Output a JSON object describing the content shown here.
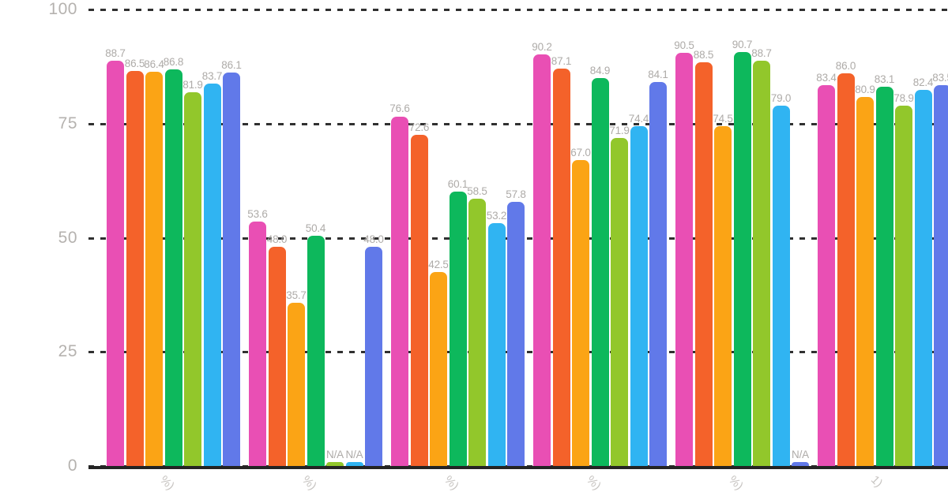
{
  "chart_data": {
    "type": "bar",
    "ylim": [
      0,
      100
    ],
    "y_ticks": [
      "0",
      "25",
      "50",
      "75",
      "100"
    ],
    "grid": "dashed horizontal gridlines at each y tick",
    "legend": "none",
    "x_axis_note": "rotated category labels cut off at bottom edge; only trailing fragments visible",
    "categories": [
      "%)",
      "%)",
      "%)",
      "%)",
      "%)",
      "1)"
    ],
    "na_label": "N/A",
    "value_decimals": 1,
    "series": [
      {
        "name": "pink",
        "color": "#e94fb4",
        "values": [
          88.7,
          53.6,
          76.6,
          90.2,
          90.5,
          83.4
        ]
      },
      {
        "name": "vermilion",
        "color": "#f4622a",
        "values": [
          86.5,
          48.0,
          72.6,
          87.1,
          88.5,
          86.0
        ]
      },
      {
        "name": "amber",
        "color": "#fba415",
        "values": [
          86.4,
          35.7,
          42.5,
          67.0,
          74.5,
          80.9
        ]
      },
      {
        "name": "green",
        "color": "#0db85c",
        "values": [
          86.8,
          50.4,
          60.1,
          84.9,
          90.7,
          83.1
        ]
      },
      {
        "name": "lime",
        "color": "#92c72b",
        "values": [
          81.9,
          null,
          58.5,
          71.9,
          88.7,
          78.9
        ]
      },
      {
        "name": "sky",
        "color": "#30b4f2",
        "values": [
          83.7,
          null,
          53.2,
          74.4,
          79.0,
          82.4
        ]
      },
      {
        "name": "blue",
        "color": "#6179e9",
        "values": [
          86.1,
          48.0,
          57.8,
          84.1,
          null,
          83.5
        ]
      }
    ]
  },
  "colors": {
    "background": "#ffffff",
    "grid": "#303030",
    "axis": "#242424",
    "tick_label": "#b5b2af",
    "value_label": "#aeaba8",
    "x_tick_label": "#c7c4c1"
  }
}
